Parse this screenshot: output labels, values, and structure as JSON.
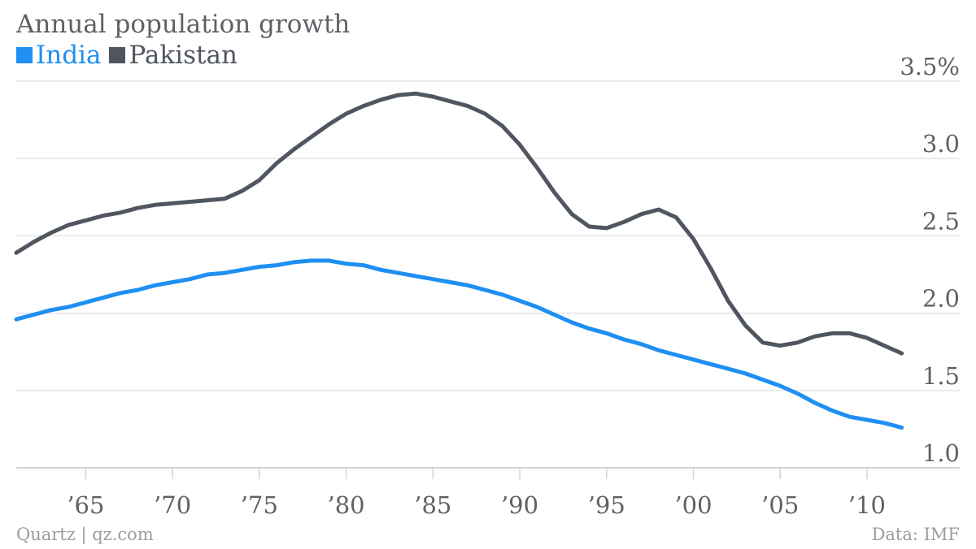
{
  "chart_data": {
    "type": "line",
    "title": "Annual population growth",
    "xlabel": "",
    "ylabel": "",
    "x": [
      1961,
      1962,
      1963,
      1964,
      1965,
      1966,
      1967,
      1968,
      1969,
      1970,
      1971,
      1972,
      1973,
      1974,
      1975,
      1976,
      1977,
      1978,
      1979,
      1980,
      1981,
      1982,
      1983,
      1984,
      1985,
      1986,
      1987,
      1988,
      1989,
      1990,
      1991,
      1992,
      1993,
      1994,
      1995,
      1996,
      1997,
      1998,
      1999,
      2000,
      2001,
      2002,
      2003,
      2004,
      2005,
      2006,
      2007,
      2008,
      2009,
      2010,
      2011,
      2012
    ],
    "xlim": [
      1961,
      2013
    ],
    "ylim": [
      1.0,
      3.5
    ],
    "y_ticks": [
      1.0,
      1.5,
      2.0,
      2.5,
      3.0,
      3.5
    ],
    "y_tick_labels": [
      "1.0",
      "1.5",
      "2.0",
      "2.5",
      "3.0",
      "3.5%"
    ],
    "x_ticks": [
      1965,
      1970,
      1975,
      1980,
      1985,
      1990,
      1995,
      2000,
      2005,
      2010
    ],
    "x_tick_labels": [
      "’65",
      "’70",
      "’75",
      "’80",
      "’85",
      "’90",
      "’95",
      "’00",
      "’05",
      "’10"
    ],
    "grid": true,
    "y_axis_position": "right",
    "legend_position": "top-left",
    "series": [
      {
        "name": "India",
        "color": "#1f8ff2",
        "values": [
          1.96,
          1.99,
          2.02,
          2.04,
          2.07,
          2.1,
          2.13,
          2.15,
          2.18,
          2.2,
          2.22,
          2.25,
          2.26,
          2.28,
          2.3,
          2.31,
          2.33,
          2.34,
          2.34,
          2.32,
          2.31,
          2.28,
          2.26,
          2.24,
          2.22,
          2.2,
          2.18,
          2.15,
          2.12,
          2.08,
          2.04,
          1.99,
          1.94,
          1.9,
          1.87,
          1.83,
          1.8,
          1.76,
          1.73,
          1.7,
          1.67,
          1.64,
          1.61,
          1.57,
          1.53,
          1.48,
          1.42,
          1.37,
          1.33,
          1.31,
          1.29,
          1.26
        ]
      },
      {
        "name": "Pakistan",
        "color": "#505660",
        "values": [
          2.39,
          2.46,
          2.52,
          2.57,
          2.6,
          2.63,
          2.65,
          2.68,
          2.7,
          2.71,
          2.72,
          2.73,
          2.74,
          2.79,
          2.86,
          2.97,
          3.06,
          3.14,
          3.22,
          3.29,
          3.34,
          3.38,
          3.41,
          3.42,
          3.4,
          3.37,
          3.34,
          3.29,
          3.21,
          3.09,
          2.94,
          2.78,
          2.64,
          2.56,
          2.55,
          2.59,
          2.64,
          2.67,
          2.62,
          2.48,
          2.29,
          2.08,
          1.92,
          1.81,
          1.79,
          1.81,
          1.85,
          1.87,
          1.87,
          1.84,
          1.79,
          1.74
        ]
      }
    ]
  },
  "footer": {
    "source_left": "Quartz | qz.com",
    "source_right": "Data: IMF"
  }
}
